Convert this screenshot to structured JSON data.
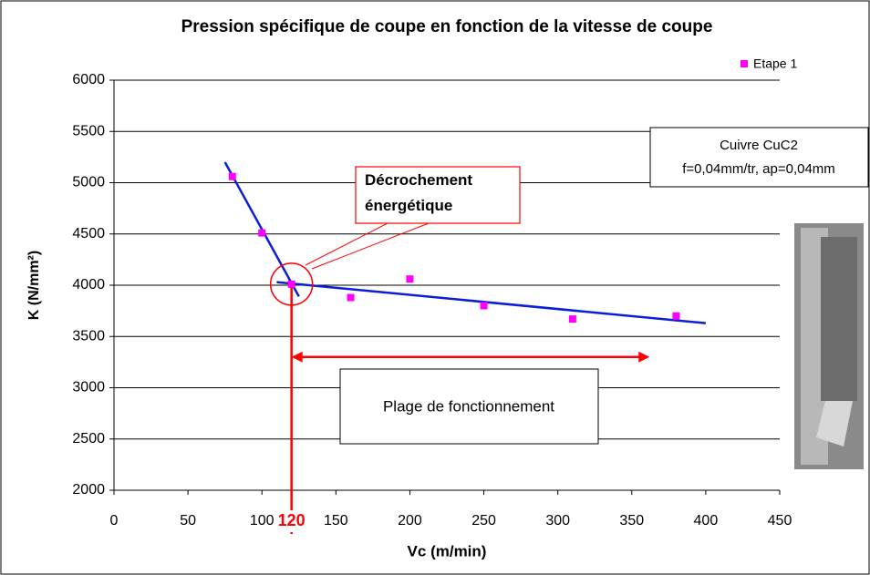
{
  "chart_data": {
    "type": "scatter",
    "title": "Pression spécifique de coupe en fonction de la vitesse de coupe",
    "xlabel": "Vc (m/min)",
    "ylabel": "K (N/mm²)",
    "xlim": [
      0,
      450
    ],
    "ylim": [
      2000,
      6000
    ],
    "xticks": [
      0,
      50,
      100,
      150,
      200,
      250,
      300,
      350,
      400,
      450
    ],
    "yticks": [
      2000,
      2500,
      3000,
      3500,
      4000,
      4500,
      5000,
      5500,
      6000
    ],
    "grid": true,
    "legend": "top-right",
    "series": [
      {
        "name": "Etape 1",
        "color": "#ff00ff",
        "x": [
          80,
          100,
          120,
          160,
          200,
          250,
          310,
          380
        ],
        "values": [
          5060,
          4510,
          4010,
          3880,
          4060,
          3800,
          3670,
          3700
        ]
      }
    ],
    "trendlines": [
      {
        "color": "#0a1ed6",
        "x": [
          75,
          125
        ],
        "values": [
          5200,
          3890
        ]
      },
      {
        "color": "#0a1ed6",
        "x": [
          110,
          400
        ],
        "values": [
          4030,
          3630
        ]
      }
    ],
    "highlight_x": 120,
    "range_arrow": {
      "x": [
        120,
        362
      ],
      "y": 3300
    },
    "annotations": {
      "break": "Décrochement énergétique",
      "range": "Plage de fonctionnement",
      "material": "Cuivre CuC2",
      "conditions": "f=0,04mm/tr, ap=0,04mm"
    }
  }
}
